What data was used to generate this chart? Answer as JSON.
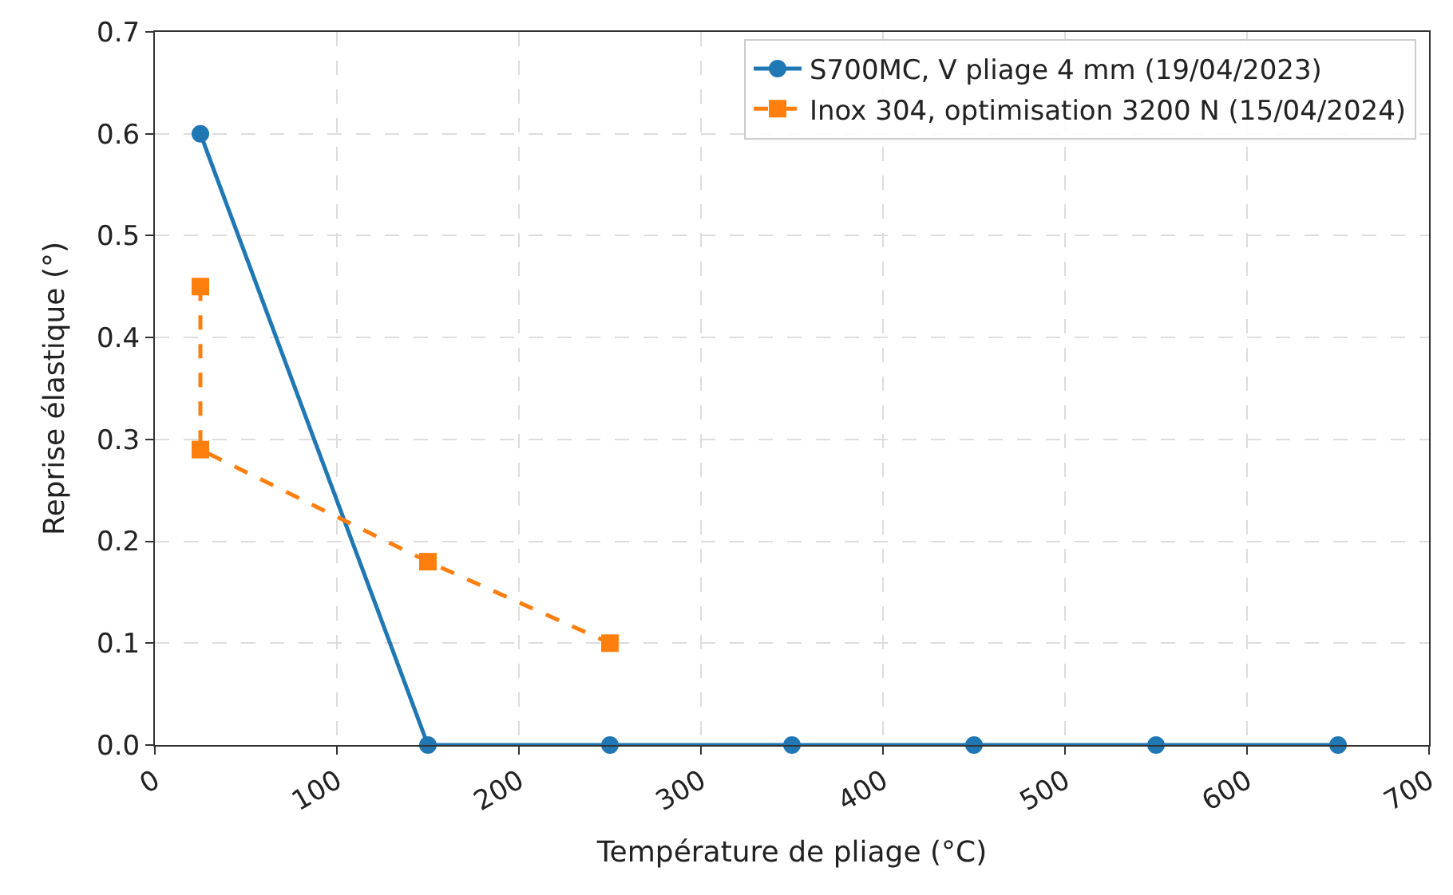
{
  "chart_data": {
    "type": "line",
    "xlabel": "Température de pliage (°C)",
    "ylabel": "Reprise élastique (°)",
    "xlim": [
      0,
      700
    ],
    "xticks": [
      0,
      100,
      200,
      300,
      400,
      500,
      600,
      700
    ],
    "ylim": [
      0,
      0.7
    ],
    "yticks": [
      {
        "value": 0,
        "label": "0.0"
      },
      0.1,
      0.2,
      0.3,
      0.4,
      0.5,
      0.6,
      0.7
    ],
    "grid": true,
    "legend": "top right",
    "series": [
      {
        "name": "S700MC, V pliage 4 mm (19/04/2023)",
        "color": "#1f77b4",
        "marker": "circle",
        "line_style": "solid",
        "x": [
          25,
          150,
          250,
          350,
          450,
          550,
          650
        ],
        "values": [
          0.6,
          0,
          0,
          0,
          0,
          0,
          0
        ]
      },
      {
        "name": "Inox 304, optimisation 3200 N (15/04/2024)",
        "color": "#ff7f0e",
        "marker": "square",
        "line_style": "dashed",
        "x": [
          25,
          25,
          150,
          250
        ],
        "values": [
          0.45,
          0.29,
          0.18,
          0.1
        ]
      }
    ]
  }
}
